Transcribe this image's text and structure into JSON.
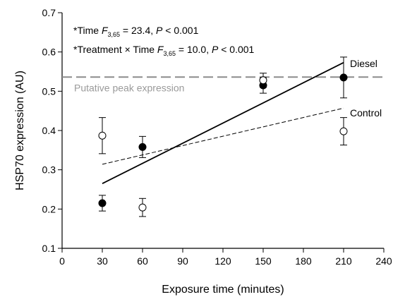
{
  "chart_data": {
    "type": "scatter",
    "title": "",
    "xlabel": "Exposure time (minutes)",
    "ylabel": "HSP70 expression (AU)",
    "xlim": [
      0,
      240
    ],
    "ylim": [
      0.1,
      0.7
    ],
    "x_ticks": [
      0,
      30,
      60,
      90,
      120,
      150,
      180,
      210,
      240
    ],
    "y_ticks": [
      0.1,
      0.2,
      0.3,
      0.4,
      0.5,
      0.6,
      0.7
    ],
    "grid": false,
    "series": [
      {
        "name": "Diesel",
        "marker": "filled-circle",
        "x": [
          30,
          60,
          150,
          210
        ],
        "y": [
          0.215,
          0.358,
          0.515,
          0.535
        ],
        "err": [
          0.02,
          0.027,
          0.02,
          0.052
        ],
        "trend": {
          "x": [
            30,
            210
          ],
          "y": [
            0.265,
            0.573
          ],
          "style": "solid"
        }
      },
      {
        "name": "Control",
        "marker": "open-circle",
        "x": [
          30,
          60,
          150,
          210
        ],
        "y": [
          0.387,
          0.204,
          0.528,
          0.398
        ],
        "err": [
          0.046,
          0.023,
          0.018,
          0.035
        ],
        "trend": {
          "x": [
            30,
            210
          ],
          "y": [
            0.314,
            0.457
          ],
          "style": "dashed"
        }
      }
    ],
    "reference_line": {
      "y": 0.536,
      "label": "Putative peak expression",
      "style": "long-dash",
      "color": "#8c8c8c"
    },
    "annotations": [
      {
        "prefix": "*Time ",
        "stat": "F",
        "sub": "3,65",
        "rest": " = 23.4, ",
        "p": "P",
        "tail": " < 0.001"
      },
      {
        "prefix": "*Treatment × Time ",
        "stat": "F",
        "sub": "3,65",
        "rest": " = 10.0, ",
        "p": "P",
        "tail": " < 0.001"
      }
    ]
  }
}
